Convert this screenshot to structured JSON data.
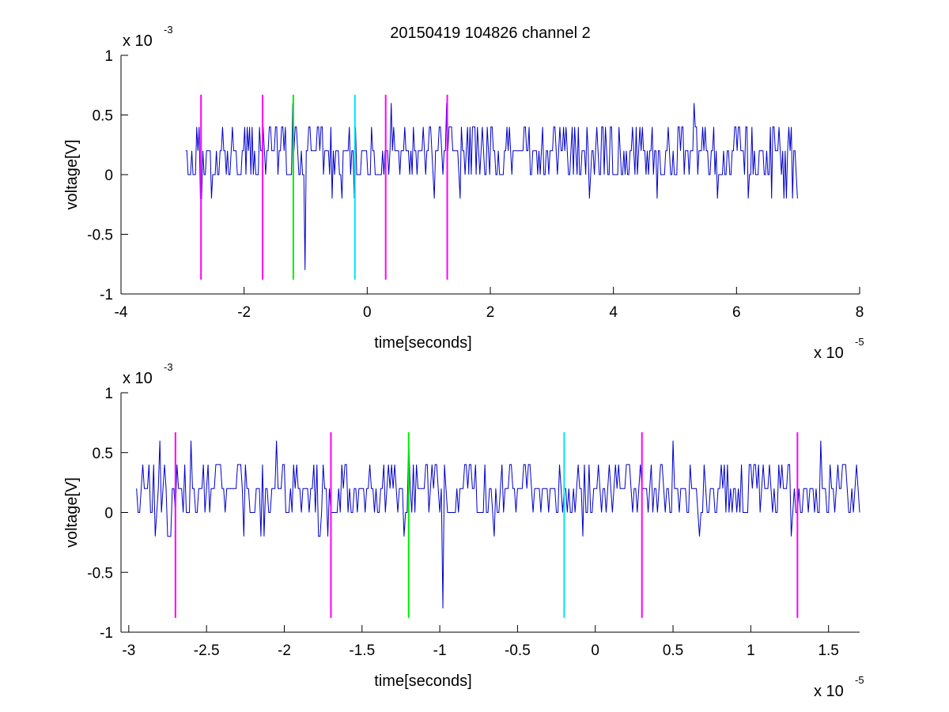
{
  "figure": {
    "title": "20150419 104826 channel 2"
  },
  "chart_data": [
    {
      "type": "line",
      "title": "20150419 104826 channel 2",
      "xlabel": "time[seconds]",
      "ylabel": "voltage[V]",
      "xlim": [
        -4,
        8
      ],
      "ylim": [
        -1,
        1
      ],
      "x_multiplier": {
        "base": "x 10",
        "exponent": "-5"
      },
      "y_multiplier": {
        "base": "x 10",
        "exponent": "-3"
      },
      "x_ticks": [
        -4,
        -2,
        0,
        2,
        4,
        6,
        8
      ],
      "x_tick_labels": [
        "-4",
        "-2",
        "0",
        "2",
        "4",
        "6",
        "8"
      ],
      "y_ticks": [
        -1,
        -0.5,
        0,
        0.5,
        1
      ],
      "y_tick_labels": [
        "-1",
        "-0.5",
        "0",
        "0.5",
        "1"
      ],
      "grid": false,
      "signal": {
        "color": "#0000cc",
        "x_start": -2.95,
        "x_end": 7.0,
        "sample_step": 0.02,
        "levels": [
          -0.2,
          0,
          0.2,
          0.4
        ],
        "baseline": 0.2,
        "spikes": [
          {
            "x": -2.7,
            "y": -0.2
          },
          {
            "x": -1.2,
            "y": 0.6
          },
          {
            "x": -1.0,
            "y": -0.8
          },
          {
            "x": 0.4,
            "y": 0.6
          },
          {
            "x": 1.3,
            "y": 0.6
          },
          {
            "x": 5.3,
            "y": 0.6
          },
          {
            "x": 6.9,
            "y": -0.2
          }
        ]
      },
      "markers": [
        {
          "x": -2.7,
          "color": "#ff00ff",
          "y_range": [
            -0.88,
            0.67
          ]
        },
        {
          "x": -1.7,
          "color": "#ff00ff",
          "y_range": [
            -0.88,
            0.67
          ]
        },
        {
          "x": -1.2,
          "color": "#00ee00",
          "y_range": [
            -0.88,
            0.67
          ]
        },
        {
          "x": -0.2,
          "color": "#00e5ee",
          "y_range": [
            -0.88,
            0.67
          ]
        },
        {
          "x": 0.3,
          "color": "#ff00ff",
          "y_range": [
            -0.88,
            0.67
          ]
        },
        {
          "x": 1.3,
          "color": "#ff00ff",
          "y_range": [
            -0.88,
            0.67
          ]
        }
      ]
    },
    {
      "type": "line",
      "title": "",
      "xlabel": "time[seconds]",
      "ylabel": "voltage[V]",
      "xlim": [
        -3.05,
        1.7
      ],
      "ylim": [
        -1,
        1
      ],
      "x_multiplier": {
        "base": "x 10",
        "exponent": "-5"
      },
      "y_multiplier": {
        "base": "x 10",
        "exponent": "-3"
      },
      "x_ticks": [
        -3,
        -2.5,
        -2,
        -1.5,
        -1,
        -0.5,
        0,
        0.5,
        1,
        1.5
      ],
      "x_tick_labels": [
        "-3",
        "-2.5",
        "-2",
        "-1.5",
        "-1",
        "-0.5",
        "0",
        "0.5",
        "1",
        "1.5"
      ],
      "y_ticks": [
        -1,
        -0.5,
        0,
        0.5,
        1
      ],
      "y_tick_labels": [
        "-1",
        "-0.5",
        "0",
        "0.5",
        "1"
      ],
      "grid": false,
      "signal": {
        "color": "#0000cc",
        "x_start": -2.95,
        "x_end": 1.7,
        "sample_step": 0.01,
        "levels": [
          -0.2,
          0,
          0.2,
          0.4
        ],
        "baseline": 0.2,
        "spikes": [
          {
            "x": -2.8,
            "y": 0.6
          },
          {
            "x": -2.6,
            "y": 0.6
          },
          {
            "x": -2.05,
            "y": 0.6
          },
          {
            "x": -1.2,
            "y": 0.6
          },
          {
            "x": -0.98,
            "y": -0.8
          },
          {
            "x": 0.5,
            "y": 0.6
          },
          {
            "x": 1.45,
            "y": 0.6
          }
        ]
      },
      "markers": [
        {
          "x": -2.7,
          "color": "#ff00ff",
          "y_range": [
            -0.88,
            0.67
          ]
        },
        {
          "x": -1.7,
          "color": "#ff00ff",
          "y_range": [
            -0.88,
            0.67
          ]
        },
        {
          "x": -1.2,
          "color": "#00ee00",
          "y_range": [
            -0.88,
            0.67
          ]
        },
        {
          "x": -0.2,
          "color": "#00e5ee",
          "y_range": [
            -0.88,
            0.67
          ]
        },
        {
          "x": 0.3,
          "color": "#ff00ff",
          "y_range": [
            -0.88,
            0.67
          ]
        },
        {
          "x": 1.3,
          "color": "#ff00ff",
          "y_range": [
            -0.88,
            0.67
          ]
        }
      ]
    }
  ]
}
